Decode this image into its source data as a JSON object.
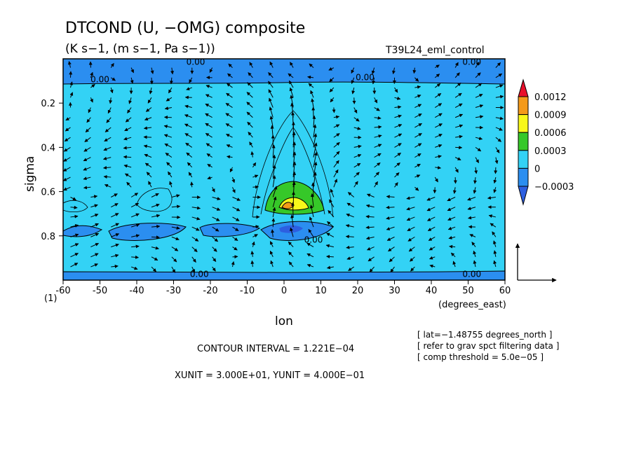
{
  "chart_data": {
    "type": "heatmap",
    "title": "DTCOND (U, −OMG) composite",
    "subtitle": "(K s−1, (m s−1, Pa s−1))",
    "run_label": "T39L24_eml_control",
    "xlabel": "lon",
    "xunits": "(degrees_east)",
    "ylabel": "sigma",
    "y_corner_label": "(1)",
    "xlim": [
      -60,
      60
    ],
    "ylim": [
      1.0,
      0.0
    ],
    "y_inverted": true,
    "x_ticks": [
      "-60",
      "-50",
      "-40",
      "-30",
      "-20",
      "-10",
      "0",
      "10",
      "20",
      "30",
      "40",
      "50",
      "60"
    ],
    "y_ticks": [
      "0.2",
      "0.4",
      "0.6",
      "0.8"
    ],
    "colorbar": {
      "labels": [
        "0.0012",
        "0.0009",
        "0.0006",
        "0.0003",
        "0",
        "−0.0003"
      ],
      "colors": [
        "#e8102a",
        "#f49a1a",
        "#f8f81a",
        "#36c829",
        "#33d2f5",
        "#2b8ef0",
        "#2d5fe0"
      ]
    },
    "contour_labels": [
      {
        "text": "0.00",
        "lon": -24,
        "sigma": 0.02
      },
      {
        "text": "0.00",
        "lon": 51,
        "sigma": 0.02
      },
      {
        "text": "0.00",
        "lon": -50,
        "sigma": 0.1
      },
      {
        "text": "0.00",
        "lon": 22,
        "sigma": 0.09
      },
      {
        "text": "0.00",
        "lon": 8,
        "sigma": 0.825
      },
      {
        "text": "0.00",
        "lon": -23,
        "sigma": 0.98
      },
      {
        "text": "0.00",
        "lon": 51,
        "sigma": 0.98
      }
    ],
    "annotations": {
      "contour_interval": "CONTOUR INTERVAL = 1.221E−04",
      "units": "XUNIT = 3.000E+01, YUNIT = 4.000E−01",
      "notes": [
        "[ lat=−1.48755 degrees_north ]",
        "[ refer to grav spct filtering data ]",
        "[ comp threshold = 5.0e−05 ]"
      ]
    }
  }
}
